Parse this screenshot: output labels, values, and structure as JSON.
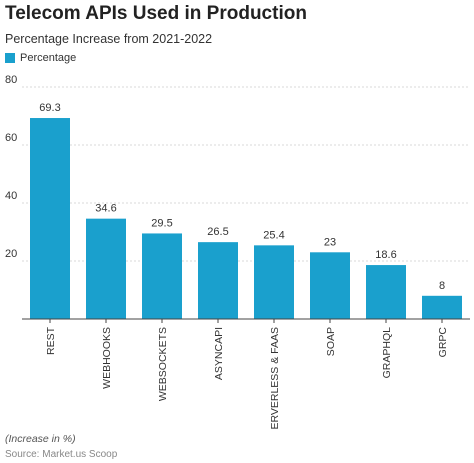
{
  "colors": {
    "bar": "#1aa0cd",
    "grid": "#d9d9d9",
    "axis": "#444444",
    "text": "#333333"
  },
  "chart_data": {
    "type": "bar",
    "title": "Telecom APIs Used in Production",
    "subtitle": "Percentage Increase from 2021-2022",
    "categories": [
      "REST",
      "WEBHOOKS",
      "WEBSOCKETS",
      "ASYNCAPI",
      "SERVERLESS & FAAS",
      "SOAP",
      "GRAPHQL",
      "GRPC"
    ],
    "series": [
      {
        "name": "Percentage",
        "values": [
          69.3,
          34.6,
          29.5,
          26.5,
          25.4,
          23,
          18.6,
          8
        ]
      }
    ],
    "data_labels": [
      "69.3",
      "34.6",
      "29.5",
      "26.5",
      "25.4",
      "23",
      "18.6",
      "8"
    ],
    "ylim": [
      0,
      80
    ],
    "yticks": [
      0,
      20,
      40,
      60,
      80
    ],
    "ytick_labels": [
      "",
      "20",
      "40",
      "60",
      "80"
    ],
    "grid": true,
    "legend": "top-left",
    "footnote": "(Increase in %)",
    "source": "Source: Market.us Scoop"
  }
}
